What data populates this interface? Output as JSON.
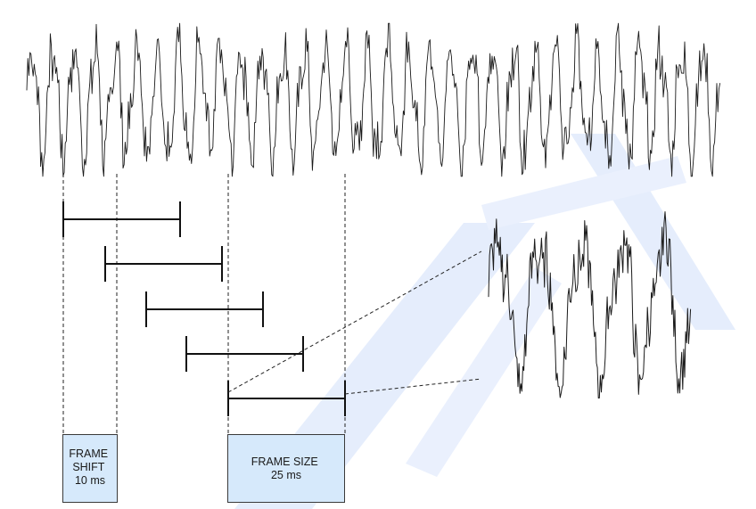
{
  "diagram": {
    "frame_shift_box": {
      "lines": [
        "FRAME",
        "SHIFT",
        "10 ms"
      ]
    },
    "frame_size_box": {
      "lines": [
        "FRAME SIZE",
        "25 ms"
      ]
    },
    "frame_segments": 5,
    "colors": {
      "waveform": "#1a1a1a",
      "box_fill": "#d6e9fb",
      "box_stroke": "#3a3a3a",
      "watermark": "#dbe6fa"
    }
  }
}
